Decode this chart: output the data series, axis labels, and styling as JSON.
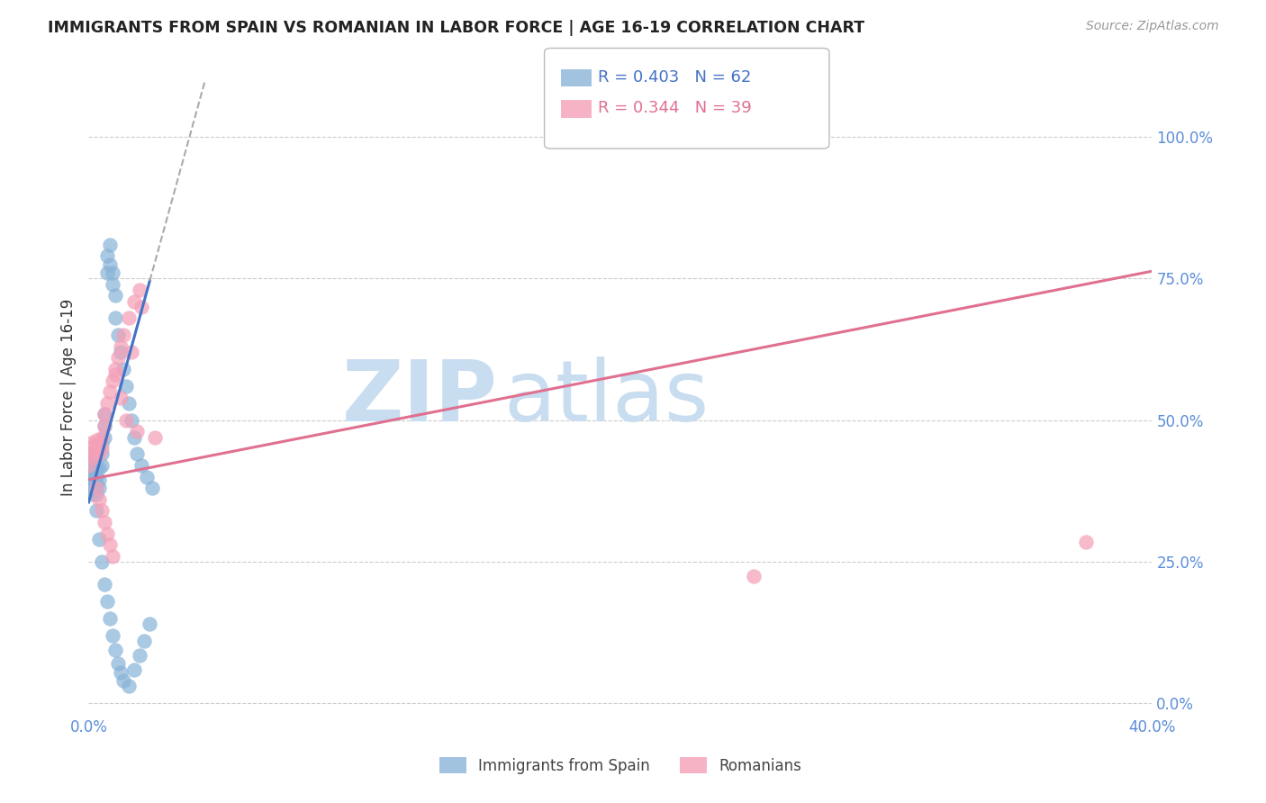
{
  "title": "IMMIGRANTS FROM SPAIN VS ROMANIAN IN LABOR FORCE | AGE 16-19 CORRELATION CHART",
  "source": "Source: ZipAtlas.com",
  "ylabel": "In Labor Force | Age 16-19",
  "legend_label1": "Immigrants from Spain",
  "legend_label2": "Romanians",
  "r1": 0.403,
  "n1": 62,
  "r2": 0.344,
  "n2": 39,
  "color1": "#8ab4d8",
  "color2": "#f4a0b8",
  "line_color1": "#4472c4",
  "line_color2": "#e07090",
  "watermark_color": "#dce8f5",
  "bg_color": "#ffffff",
  "grid_color": "#cccccc",
  "title_color": "#222222",
  "axis_label_color": "#333333",
  "tick_color": "#5b8dd9",
  "xlim": [
    0.0,
    0.4
  ],
  "ylim": [
    -0.02,
    1.1
  ],
  "xtick_left": "0.0%",
  "xtick_right": "40.0%",
  "yticks_right": [
    0.0,
    0.25,
    0.5,
    0.75,
    1.0
  ],
  "spain_x": [
    0.0,
    0.0,
    0.0,
    0.001,
    0.001,
    0.001,
    0.001,
    0.001,
    0.001,
    0.002,
    0.002,
    0.002,
    0.002,
    0.002,
    0.003,
    0.003,
    0.003,
    0.003,
    0.004,
    0.004,
    0.004,
    0.005,
    0.005,
    0.005,
    0.006,
    0.006,
    0.006,
    0.007,
    0.007,
    0.008,
    0.008,
    0.009,
    0.009,
    0.01,
    0.01,
    0.011,
    0.012,
    0.013,
    0.014,
    0.015,
    0.016,
    0.017,
    0.018,
    0.02,
    0.022,
    0.024,
    0.003,
    0.004,
    0.005,
    0.006,
    0.007,
    0.008,
    0.009,
    0.01,
    0.011,
    0.012,
    0.013,
    0.015,
    0.017,
    0.019,
    0.021,
    0.023
  ],
  "spain_y": [
    0.375,
    0.39,
    0.405,
    0.37,
    0.385,
    0.395,
    0.41,
    0.425,
    0.44,
    0.38,
    0.395,
    0.41,
    0.425,
    0.44,
    0.37,
    0.385,
    0.4,
    0.415,
    0.38,
    0.395,
    0.415,
    0.42,
    0.44,
    0.46,
    0.47,
    0.49,
    0.51,
    0.76,
    0.79,
    0.81,
    0.775,
    0.76,
    0.74,
    0.72,
    0.68,
    0.65,
    0.62,
    0.59,
    0.56,
    0.53,
    0.5,
    0.47,
    0.44,
    0.42,
    0.4,
    0.38,
    0.34,
    0.29,
    0.25,
    0.21,
    0.18,
    0.15,
    0.12,
    0.095,
    0.07,
    0.055,
    0.04,
    0.03,
    0.06,
    0.085,
    0.11,
    0.14
  ],
  "romanian_x": [
    0.0,
    0.001,
    0.001,
    0.002,
    0.002,
    0.003,
    0.003,
    0.004,
    0.004,
    0.005,
    0.005,
    0.006,
    0.006,
    0.007,
    0.008,
    0.009,
    0.01,
    0.011,
    0.012,
    0.013,
    0.015,
    0.017,
    0.019,
    0.003,
    0.004,
    0.005,
    0.006,
    0.007,
    0.008,
    0.009,
    0.01,
    0.012,
    0.014,
    0.016,
    0.018,
    0.02,
    0.025,
    0.25,
    0.375
  ],
  "romanian_y": [
    0.42,
    0.44,
    0.46,
    0.435,
    0.455,
    0.445,
    0.465,
    0.44,
    0.46,
    0.45,
    0.47,
    0.49,
    0.51,
    0.53,
    0.55,
    0.57,
    0.59,
    0.61,
    0.63,
    0.65,
    0.68,
    0.71,
    0.73,
    0.38,
    0.36,
    0.34,
    0.32,
    0.3,
    0.28,
    0.26,
    0.58,
    0.54,
    0.5,
    0.62,
    0.48,
    0.7,
    0.47,
    0.225,
    0.285
  ],
  "spain_line_x": [
    0.0,
    0.024
  ],
  "spain_line_y_intercept": 0.355,
  "spain_line_slope": 17.0,
  "romanian_line_x": [
    0.0,
    0.4
  ],
  "romanian_line_y_intercept": 0.395,
  "romanian_line_slope": 0.92
}
